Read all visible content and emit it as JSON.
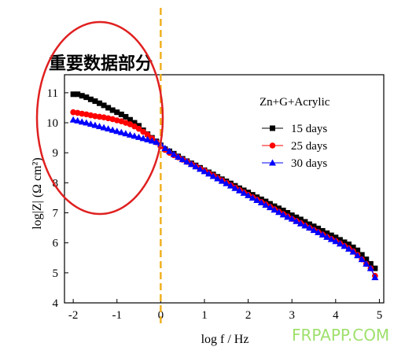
{
  "heading": "重要数据部分",
  "watermark": "FRPAPP.COM",
  "colors": {
    "s15": "#000000",
    "s25": "#ff0000",
    "s30": "#0000ff",
    "ellipse": "#e02020",
    "vline": "#f0b020",
    "watermark": "#9fe06b"
  },
  "chart_data": {
    "type": "scatter",
    "title": "",
    "subtitle": "Zn+G+Acrylic",
    "xlabel": "log f / Hz",
    "ylabel": "log|Z| (Ω cm²)",
    "xlim": [
      -2.2,
      5.1
    ],
    "ylim": [
      4,
      11.6
    ],
    "xticks": [
      -2,
      -1,
      0,
      1,
      2,
      3,
      4,
      5
    ],
    "yticks": [
      4,
      5,
      6,
      7,
      8,
      9,
      10,
      11
    ],
    "grid": false,
    "legend_position": "top-right",
    "vline_x": 0,
    "highlight": "ellipse around low-frequency region",
    "series": [
      {
        "name": "15 days",
        "marker": "square",
        "color": "#000000",
        "x": [
          -2.0,
          -1.9,
          -1.8,
          -1.7,
          -1.6,
          -1.5,
          -1.4,
          -1.3,
          -1.2,
          -1.1,
          -1.0,
          -0.9,
          -0.8,
          -0.7,
          -0.6,
          -0.5,
          -0.4,
          -0.3,
          -0.2,
          -0.1,
          0.0,
          0.1,
          0.2,
          0.3,
          0.4,
          0.5,
          0.6,
          0.7,
          0.8,
          0.9,
          1.0,
          1.1,
          1.2,
          1.3,
          1.4,
          1.5,
          1.6,
          1.7,
          1.8,
          1.9,
          2.0,
          2.1,
          2.2,
          2.3,
          2.4,
          2.5,
          2.6,
          2.7,
          2.8,
          2.9,
          3.0,
          3.1,
          3.2,
          3.3,
          3.4,
          3.5,
          3.6,
          3.7,
          3.8,
          3.9,
          4.0,
          4.1,
          4.2,
          4.3,
          4.4,
          4.5,
          4.6,
          4.7,
          4.8,
          4.9
        ],
        "y": [
          10.95,
          10.95,
          10.9,
          10.85,
          10.78,
          10.72,
          10.65,
          10.58,
          10.5,
          10.42,
          10.35,
          10.28,
          10.2,
          10.1,
          10.0,
          9.9,
          9.75,
          9.62,
          9.5,
          9.38,
          9.25,
          9.12,
          9.05,
          8.97,
          8.88,
          8.8,
          8.72,
          8.65,
          8.58,
          8.5,
          8.42,
          8.35,
          8.28,
          8.2,
          8.12,
          8.05,
          7.98,
          7.9,
          7.82,
          7.75,
          7.68,
          7.6,
          7.52,
          7.45,
          7.38,
          7.3,
          7.22,
          7.15,
          7.08,
          7.0,
          6.92,
          6.85,
          6.78,
          6.7,
          6.62,
          6.55,
          6.48,
          6.4,
          6.32,
          6.25,
          6.18,
          6.1,
          6.02,
          5.95,
          5.85,
          5.75,
          5.6,
          5.45,
          5.3,
          5.15
        ]
      },
      {
        "name": "25 days",
        "marker": "circle",
        "color": "#ff0000",
        "x": [
          -2.0,
          -1.9,
          -1.8,
          -1.7,
          -1.6,
          -1.5,
          -1.4,
          -1.3,
          -1.2,
          -1.1,
          -1.0,
          -0.9,
          -0.8,
          -0.7,
          -0.6,
          -0.5,
          -0.4,
          -0.3,
          -0.2,
          -0.1,
          0.0,
          0.1,
          0.2,
          0.3,
          0.4,
          0.5,
          0.6,
          0.7,
          0.8,
          0.9,
          1.0,
          1.1,
          1.2,
          1.3,
          1.4,
          1.5,
          1.6,
          1.7,
          1.8,
          1.9,
          2.0,
          2.1,
          2.2,
          2.3,
          2.4,
          2.5,
          2.6,
          2.7,
          2.8,
          2.9,
          3.0,
          3.1,
          3.2,
          3.3,
          3.4,
          3.5,
          3.6,
          3.7,
          3.8,
          3.9,
          4.0,
          4.1,
          4.2,
          4.3,
          4.4,
          4.5,
          4.6,
          4.7,
          4.8,
          4.9
        ],
        "y": [
          10.35,
          10.33,
          10.3,
          10.28,
          10.25,
          10.22,
          10.2,
          10.18,
          10.15,
          10.12,
          10.08,
          10.05,
          10.0,
          9.95,
          9.88,
          9.8,
          9.7,
          9.6,
          9.48,
          9.35,
          9.22,
          9.1,
          9.0,
          8.92,
          8.85,
          8.77,
          8.7,
          8.62,
          8.55,
          8.47,
          8.4,
          8.32,
          8.24,
          8.16,
          8.08,
          8.0,
          7.92,
          7.84,
          7.76,
          7.68,
          7.6,
          7.52,
          7.44,
          7.36,
          7.28,
          7.2,
          7.12,
          7.04,
          6.96,
          6.88,
          6.8,
          6.73,
          6.66,
          6.58,
          6.5,
          6.43,
          6.36,
          6.28,
          6.2,
          6.13,
          6.06,
          5.98,
          5.9,
          5.82,
          5.72,
          5.6,
          5.45,
          5.3,
          5.15,
          4.9
        ]
      },
      {
        "name": "30 days",
        "marker": "triangle",
        "color": "#0000ff",
        "x": [
          -2.0,
          -1.9,
          -1.8,
          -1.7,
          -1.6,
          -1.5,
          -1.4,
          -1.3,
          -1.2,
          -1.1,
          -1.0,
          -0.9,
          -0.8,
          -0.7,
          -0.6,
          -0.5,
          -0.4,
          -0.3,
          -0.2,
          -0.1,
          0.0,
          0.1,
          0.2,
          0.3,
          0.4,
          0.5,
          0.6,
          0.7,
          0.8,
          0.9,
          1.0,
          1.1,
          1.2,
          1.3,
          1.4,
          1.5,
          1.6,
          1.7,
          1.8,
          1.9,
          2.0,
          2.1,
          2.2,
          2.3,
          2.4,
          2.5,
          2.6,
          2.7,
          2.8,
          2.9,
          3.0,
          3.1,
          3.2,
          3.3,
          3.4,
          3.5,
          3.6,
          3.7,
          3.8,
          3.9,
          4.0,
          4.1,
          4.2,
          4.3,
          4.4,
          4.5,
          4.6,
          4.7,
          4.8,
          4.9
        ],
        "y": [
          10.1,
          10.07,
          10.03,
          10.0,
          9.96,
          9.92,
          9.88,
          9.84,
          9.8,
          9.76,
          9.72,
          9.68,
          9.64,
          9.6,
          9.56,
          9.52,
          9.48,
          9.44,
          9.4,
          9.36,
          9.3,
          9.15,
          9.05,
          8.95,
          8.86,
          8.78,
          8.7,
          8.62,
          8.54,
          8.46,
          8.38,
          8.3,
          8.22,
          8.14,
          8.06,
          7.98,
          7.9,
          7.82,
          7.74,
          7.66,
          7.58,
          7.5,
          7.42,
          7.34,
          7.26,
          7.18,
          7.1,
          7.02,
          6.94,
          6.86,
          6.8,
          6.72,
          6.64,
          6.57,
          6.5,
          6.42,
          6.35,
          6.27,
          6.19,
          6.12,
          6.05,
          5.97,
          5.89,
          5.8,
          5.7,
          5.58,
          5.45,
          5.3,
          5.15,
          4.85
        ]
      }
    ]
  }
}
